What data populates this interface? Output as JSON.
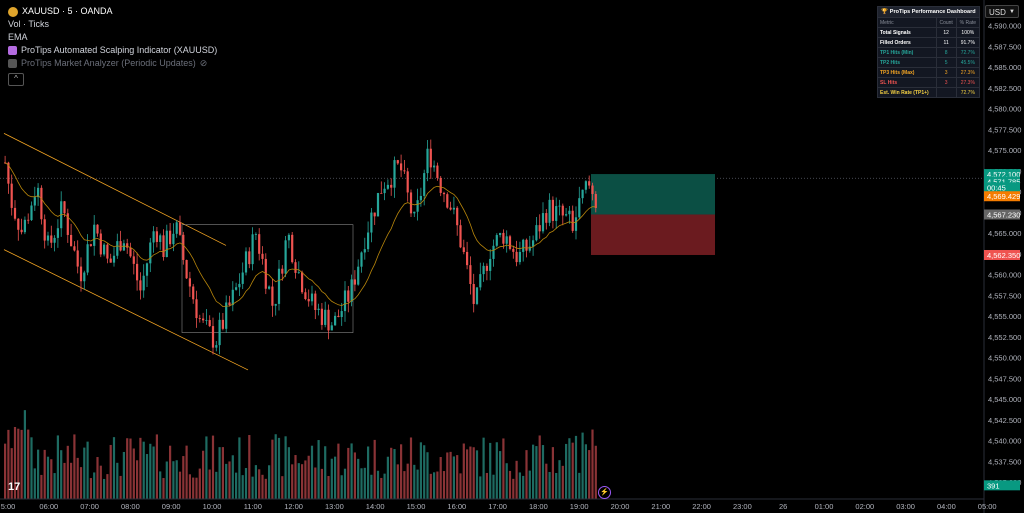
{
  "legend": {
    "symbol": "XAUUSD · 5 · OANDA",
    "vol": "Vol · Ticks",
    "ema": "EMA",
    "indicator1": "ProTips Automated Scalping Indicator (XAUUSD)",
    "indicator2": "ProTips Market Analyzer (Periodic Updates)",
    "collapse": "^"
  },
  "currency": "USD",
  "dashboard": {
    "title": "ProTips Performance Dashboard",
    "headers": [
      "Metric",
      "Count",
      "% Rate"
    ],
    "rows": [
      {
        "metric": "Total Signals",
        "count": "12",
        "rate": "100%",
        "color": "#ffffff"
      },
      {
        "metric": "Filled Orders",
        "count": "11",
        "rate": "91.7%",
        "color": "#ffffff"
      },
      {
        "metric": "TP1 Hits (Min)",
        "count": "8",
        "rate": "72.7%",
        "color": "#26a69a"
      },
      {
        "metric": "TP2 Hits",
        "count": "5",
        "rate": "45.5%",
        "color": "#26a69a"
      },
      {
        "metric": "TP3 Hits (Max)",
        "count": "3",
        "rate": "27.3%",
        "color": "#f5a623"
      },
      {
        "metric": "SL Hits",
        "count": "3",
        "rate": "27.3%",
        "color": "#ef5350"
      },
      {
        "metric": "Est. Win Rate (TP1+)",
        "count": "",
        "rate": "72.7%",
        "color": "#f5d142"
      }
    ]
  },
  "price_axis": {
    "ticks": [
      "4,590.000",
      "4,587.500",
      "4,585.000",
      "4,582.500",
      "4,580.000",
      "4,577.500",
      "4,575.000",
      "4,572.500",
      "4,570.000",
      "4,567.500",
      "4,565.000",
      "4,562.500",
      "4,560.000",
      "4,557.500",
      "4,555.000",
      "4,552.500",
      "4,550.000",
      "4,547.500",
      "4,545.000",
      "4,542.500",
      "4,540.000",
      "4,537.500",
      "4,535.000"
    ],
    "labels": [
      {
        "text": "4,572.100",
        "color": "#089981",
        "price": 4572.1
      },
      {
        "text": "4,571.785",
        "color": "#089981",
        "price": 4571.2
      },
      {
        "text": "00:45",
        "color": "#089981",
        "price": 4570.5
      },
      {
        "text": "4,569.429",
        "color": "#f57c00",
        "price": 4569.43
      },
      {
        "text": "4,567.230",
        "color": "#666666",
        "price": 4567.23
      },
      {
        "text": "4,562.350",
        "color": "#ef5350",
        "price": 4562.35
      },
      {
        "text": "391",
        "color": "#089981",
        "price": 4534.6
      }
    ]
  },
  "time_axis": [
    "5:00",
    "06:00",
    "07:00",
    "08:00",
    "09:00",
    "10:00",
    "11:00",
    "12:00",
    "13:00",
    "14:00",
    "15:00",
    "16:00",
    "17:00",
    "18:00",
    "19:00",
    "20:00",
    "21:00",
    "22:00",
    "23:00",
    "26",
    "01:00",
    "02:00",
    "03:00",
    "04:00",
    "05:00"
  ],
  "colors": {
    "up": "#26a69a",
    "down": "#ef5350",
    "channel": "#f5a623",
    "ema": "#b8860b",
    "box": "#888888",
    "tp_zone": "#0b4f44",
    "sl_zone": "#6b1b1f"
  },
  "chart_data": {
    "type": "candlestick",
    "symbol": "XAUUSD",
    "timeframe": "5",
    "ylim": [
      4533,
      4591
    ],
    "entry": 4567.23,
    "stop_loss": 4562.35,
    "take_profit": 4572.1,
    "last": 4569.429
  },
  "tv_logo": "17",
  "replay_icon": "lightning-icon"
}
